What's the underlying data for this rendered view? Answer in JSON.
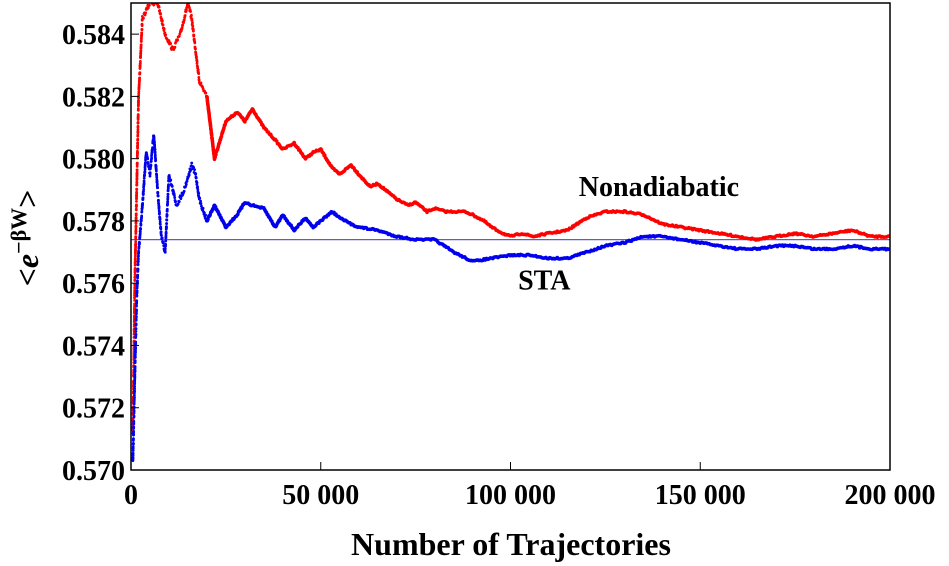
{
  "chart_data": {
    "type": "scatter",
    "xlabel": "Number of Trajectories",
    "ylabel": {
      "lt": "<",
      "e": "e",
      "sup": "−βW",
      "gt": ">"
    },
    "xlim": [
      0,
      200000
    ],
    "ylim": [
      0.57,
      0.585
    ],
    "x_ticks": [
      {
        "value": 0,
        "label": "0"
      },
      {
        "value": 50000,
        "label": "50 000"
      },
      {
        "value": 100000,
        "label": "100 000"
      },
      {
        "value": 150000,
        "label": "150 000"
      },
      {
        "value": 200000,
        "label": "200 000"
      }
    ],
    "y_ticks": [
      {
        "value": 0.57,
        "label": "0.570"
      },
      {
        "value": 0.572,
        "label": "0.572"
      },
      {
        "value": 0.574,
        "label": "0.574"
      },
      {
        "value": 0.576,
        "label": "0.576"
      },
      {
        "value": 0.578,
        "label": "0.578"
      },
      {
        "value": 0.58,
        "label": "0.580"
      },
      {
        "value": 0.582,
        "label": "0.582"
      },
      {
        "value": 0.584,
        "label": "0.584"
      }
    ],
    "reference_line": {
      "y": 0.5774,
      "color": "#5a5ad6"
    },
    "series": [
      {
        "name": "Nonadiabatic",
        "color": "#ff0000",
        "x": [
          500,
          1000,
          2000,
          3000,
          5000,
          7000,
          9000,
          11000,
          13000,
          15000,
          16000,
          18000,
          20000,
          22000,
          25000,
          28000,
          30000,
          32000,
          35000,
          38000,
          40000,
          43000,
          46000,
          48000,
          50000,
          53000,
          55000,
          58000,
          60000,
          63000,
          65000,
          68000,
          70000,
          73000,
          75000,
          78000,
          80000,
          83000,
          85000,
          88000,
          90000,
          93000,
          95000,
          98000,
          100000,
          103000,
          106000,
          110000,
          115000,
          120000,
          125000,
          130000,
          135000,
          140000,
          145000,
          150000,
          155000,
          160000,
          165000,
          170000,
          175000,
          180000,
          185000,
          190000,
          195000,
          200000
        ],
        "y": [
          0.5712,
          0.576,
          0.582,
          0.5845,
          0.585,
          0.585,
          0.584,
          0.5835,
          0.584,
          0.585,
          0.5845,
          0.5825,
          0.582,
          0.58,
          0.5812,
          0.5815,
          0.5812,
          0.5816,
          0.581,
          0.5806,
          0.5803,
          0.5805,
          0.58,
          0.5802,
          0.5803,
          0.5797,
          0.5795,
          0.5798,
          0.5795,
          0.5791,
          0.5792,
          0.5789,
          0.5787,
          0.5785,
          0.5786,
          0.5783,
          0.5784,
          0.5783,
          0.5783,
          0.5783,
          0.5782,
          0.578,
          0.5778,
          0.5776,
          0.5775,
          0.5776,
          0.5775,
          0.5776,
          0.5777,
          0.5781,
          0.5783,
          0.5783,
          0.5782,
          0.5779,
          0.5778,
          0.5777,
          0.5776,
          0.5775,
          0.5774,
          0.5775,
          0.5776,
          0.5775,
          0.5776,
          0.5777,
          0.5775,
          0.5775
        ]
      },
      {
        "name": "STA",
        "color": "#0000ee",
        "x": [
          500,
          1000,
          1500,
          2000,
          3000,
          4000,
          5000,
          6000,
          7000,
          8000,
          9000,
          10000,
          12000,
          14000,
          16000,
          17000,
          18000,
          20000,
          22000,
          25000,
          28000,
          30000,
          32000,
          35000,
          38000,
          40000,
          43000,
          46000,
          48000,
          50000,
          53000,
          55000,
          58000,
          60000,
          65000,
          70000,
          75000,
          80000,
          85000,
          90000,
          95000,
          100000,
          105000,
          110000,
          115000,
          120000,
          125000,
          130000,
          135000,
          140000,
          145000,
          150000,
          155000,
          160000,
          165000,
          170000,
          175000,
          180000,
          185000,
          190000,
          195000,
          200000
        ],
        "y": [
          0.5703,
          0.573,
          0.5755,
          0.577,
          0.5785,
          0.5802,
          0.5795,
          0.5808,
          0.579,
          0.5775,
          0.577,
          0.5795,
          0.5785,
          0.579,
          0.5798,
          0.5795,
          0.5787,
          0.578,
          0.5785,
          0.5778,
          0.5782,
          0.5786,
          0.5785,
          0.5784,
          0.5778,
          0.5782,
          0.5777,
          0.5781,
          0.5778,
          0.578,
          0.5783,
          0.5781,
          0.5779,
          0.5778,
          0.5777,
          0.5775,
          0.5774,
          0.5774,
          0.577,
          0.5767,
          0.5768,
          0.5769,
          0.5769,
          0.5768,
          0.5768,
          0.577,
          0.5772,
          0.5773,
          0.5775,
          0.5775,
          0.5774,
          0.5773,
          0.5772,
          0.5771,
          0.5771,
          0.5772,
          0.5772,
          0.5771,
          0.5771,
          0.5772,
          0.5771,
          0.5771
        ]
      }
    ],
    "annotations": [
      {
        "text": "Nonadiabatic",
        "x": 118000,
        "y": 0.5788
      },
      {
        "text": "STA",
        "x": 102000,
        "y": 0.5758
      }
    ]
  }
}
